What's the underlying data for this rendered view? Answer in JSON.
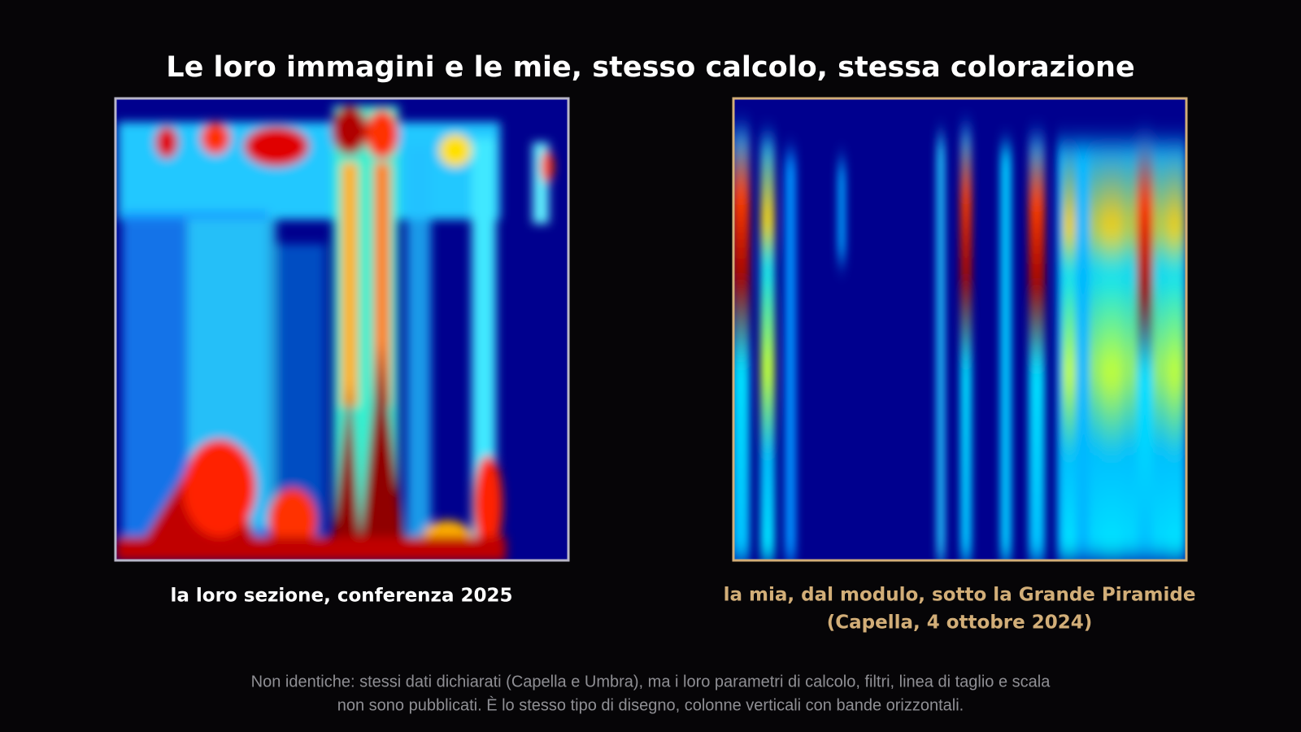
{
  "title": "Le loro immagini e le mie, stesso calcolo, stessa colorazione",
  "left_panel": {
    "caption": "la loro sezione, conferenza 2025"
  },
  "right_panel": {
    "caption_lines": [
      "la mia, dal modulo, sotto la Grande Piramide",
      "(Capella, 4 ottobre 2024)"
    ]
  },
  "footer": {
    "lines": [
      "Non identiche: stessi dati dichiarati (Capella e Umbra), ma i loro parametri di calcolo, filtri, linea di taglio e scala",
      "non sono pubblicati. È lo stesso tipo di disegno, colonne verticali con bande orizzontali."
    ]
  }
}
